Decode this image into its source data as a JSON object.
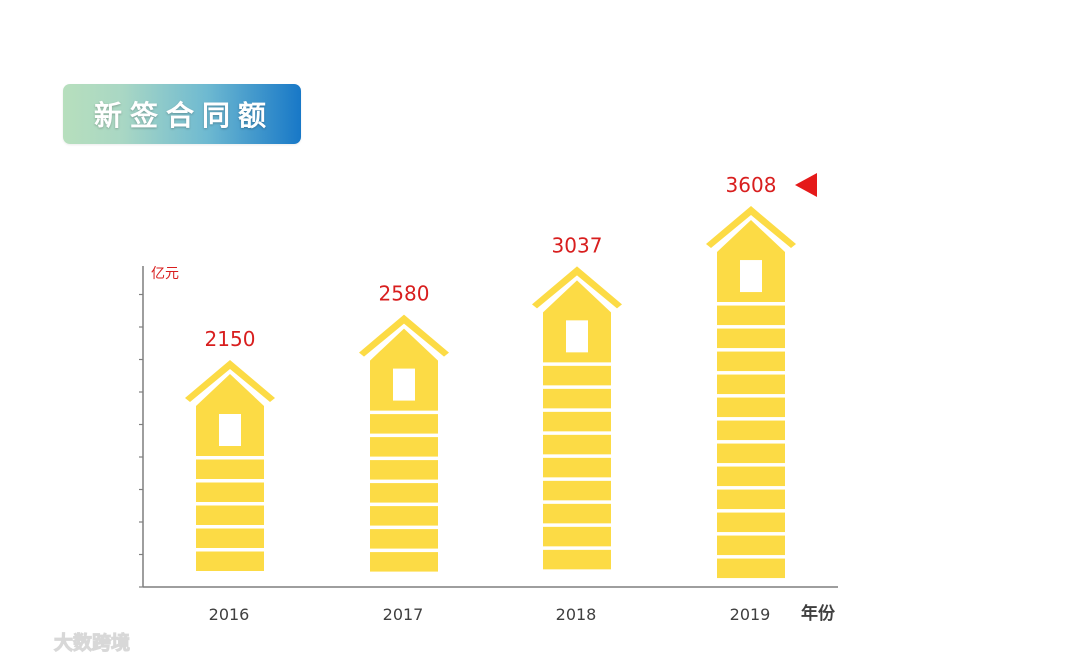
{
  "title": "新签合同额",
  "colors": {
    "bar": "#FCDB45",
    "label": "#D81E1E",
    "axis": "#7F7F7F",
    "marker": "#E51A1A"
  },
  "watermark": "大数跨境",
  "chart_data": {
    "type": "bar",
    "categories": [
      "2016",
      "2017",
      "2018",
      "2019"
    ],
    "values": [
      2150,
      2580,
      3037,
      3608
    ],
    "data_labels": [
      "2150",
      "2580",
      "3037",
      "3608"
    ],
    "ylabel": "亿元",
    "xlabel": "年份",
    "ylim": [
      0,
      4000
    ],
    "grid": false,
    "legend": "none",
    "highlight": "2019"
  }
}
